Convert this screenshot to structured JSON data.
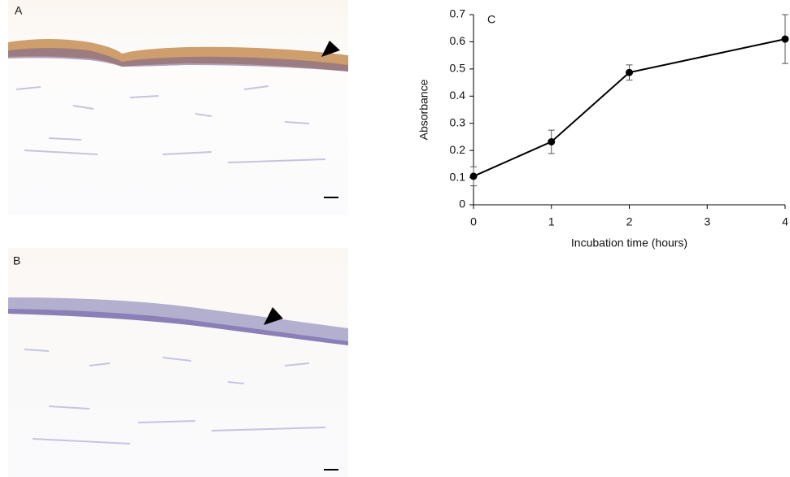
{
  "panel_labels": [
    "A",
    "B"
  ],
  "chart_data": {
    "type": "line",
    "panel_label": "C",
    "x_label": "Incubation time (hours)",
    "y_label": "Absorbance",
    "x": [
      0,
      1,
      2,
      4
    ],
    "series": [
      {
        "name": "Absorbance",
        "color": "#000000",
        "values": [
          0.105,
          0.232,
          0.487,
          0.61
        ],
        "errors": [
          0.035,
          0.043,
          0.028,
          0.09
        ]
      }
    ],
    "xlim": [
      0,
      4
    ],
    "xticks": [
      0,
      1,
      2,
      3,
      4
    ],
    "ylim": [
      0,
      0.7
    ],
    "yticks": [
      0,
      0.1,
      0.2,
      0.3,
      0.4,
      0.5,
      0.6,
      0.7
    ],
    "grid": false
  }
}
